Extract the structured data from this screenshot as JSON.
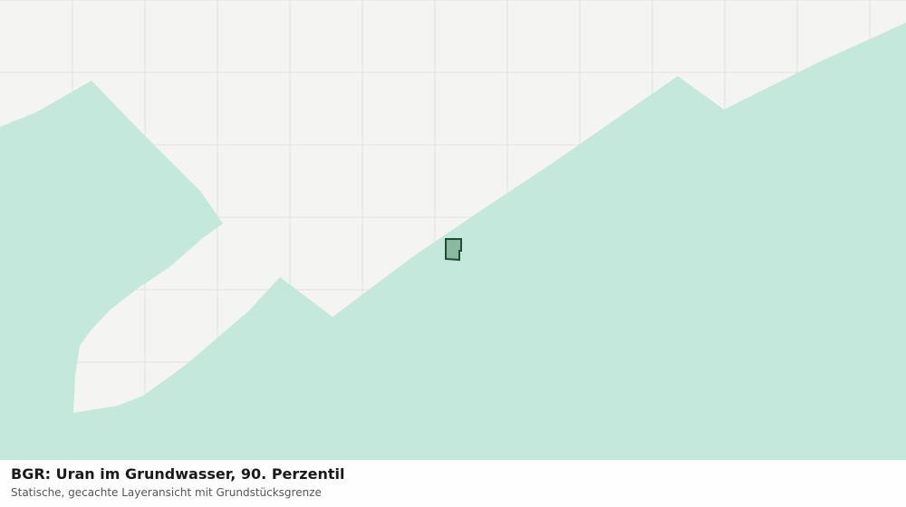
{
  "header": {
    "title": "BGR: Uran im Grundwasser, 90. Perzentil",
    "subtitle": "Statische, gecachte Layeransicht mit Grundstücksgrenze"
  }
}
